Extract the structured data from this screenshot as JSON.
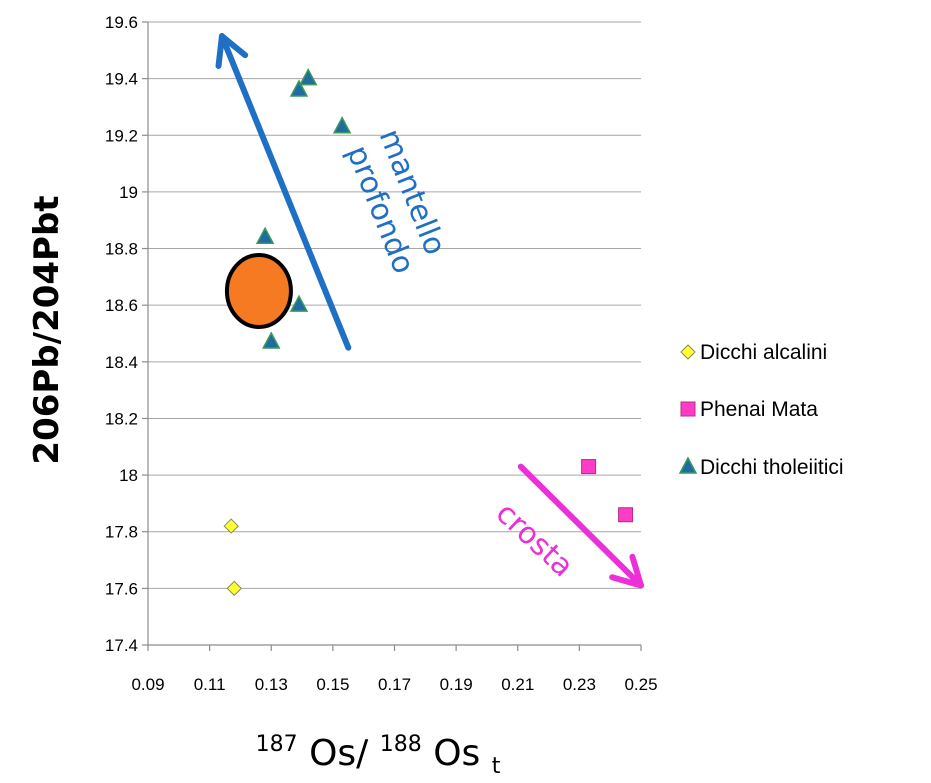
{
  "chart_data": {
    "type": "scatter",
    "xlabel": {
      "sup1": "187",
      "main1": "Os/",
      "sup2": "188",
      "main2": "Os",
      "sub": "t"
    },
    "ylabel": "206Pb/204Pbt",
    "xlim": [
      0.09,
      0.25
    ],
    "ylim": [
      17.4,
      19.6
    ],
    "x_ticks": [
      "0.09",
      "0.11",
      "0.13",
      "0.15",
      "0.17",
      "0.19",
      "0.21",
      "0.23",
      "0.25"
    ],
    "x_tick_values": [
      0.09,
      0.11,
      0.13,
      0.15,
      0.17,
      0.19,
      0.21,
      0.23,
      0.25
    ],
    "y_ticks": [
      "17.4",
      "17.6",
      "17.8",
      "18",
      "18.2",
      "18.4",
      "18.6",
      "18.8",
      "19",
      "19.2",
      "19.4",
      "19.6"
    ],
    "y_tick_values": [
      17.4,
      17.6,
      17.8,
      18.0,
      18.2,
      18.4,
      18.6,
      18.8,
      19.0,
      19.2,
      19.4,
      19.6
    ],
    "grid": "horizontal",
    "legend_position": "right",
    "series": [
      {
        "name": "Dicchi alcalini",
        "marker": "diamond",
        "color": "#ffff33",
        "points": [
          [
            0.117,
            17.82
          ],
          [
            0.118,
            17.6
          ]
        ]
      },
      {
        "name": "Phenai Mata",
        "marker": "square",
        "color": "#ff3cc7",
        "points": [
          [
            0.233,
            18.03
          ],
          [
            0.245,
            17.86
          ]
        ]
      },
      {
        "name": "Dicchi tholeiitici",
        "marker": "triangle",
        "color": "#1f6ba3",
        "points": [
          [
            0.139,
            19.36
          ],
          [
            0.142,
            19.4
          ],
          [
            0.153,
            19.23
          ],
          [
            0.128,
            18.84
          ],
          [
            0.139,
            18.6
          ],
          [
            0.13,
            18.47
          ]
        ]
      }
    ],
    "highlight": {
      "x": 0.126,
      "y": 18.65,
      "color": "#f57a22"
    },
    "annotations": [
      {
        "text_lines": [
          "mantello",
          "profondo"
        ],
        "color": "#1f6fc4"
      },
      {
        "text_lines": [
          "crosta"
        ],
        "color": "#ec2fd6"
      }
    ],
    "arrows": [
      {
        "from": [
          0.155,
          18.45
        ],
        "to": [
          0.114,
          19.55
        ],
        "color": "#1f6fc4"
      },
      {
        "from": [
          0.211,
          18.03
        ],
        "to": [
          0.25,
          17.61
        ],
        "color": "#ec2fd6"
      }
    ]
  }
}
